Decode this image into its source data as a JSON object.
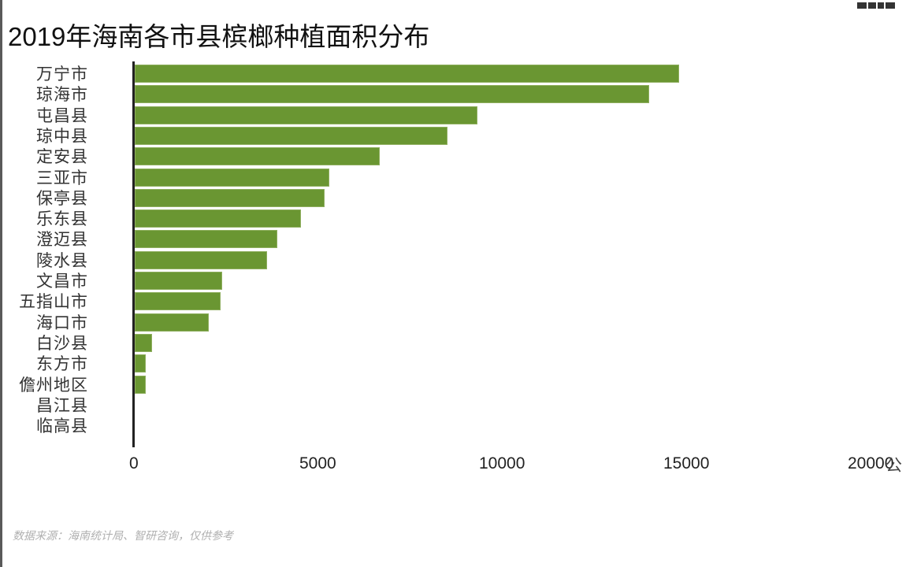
{
  "chart_data": {
    "type": "bar",
    "orientation": "horizontal",
    "title": "2019年海南各市县槟榔种植面积分布",
    "xlabel": "",
    "ylabel": "",
    "unit_label": "公",
    "xlim": [
      0,
      20000
    ],
    "xticks": [
      "0",
      "5000",
      "10000",
      "15000",
      "20000"
    ],
    "grid": false,
    "legend": null,
    "bar_color": "#6a9632",
    "categories": [
      "万宁市",
      "琼海市",
      "屯昌县",
      "琼中县",
      "定安县",
      "三亚市",
      "保亭县",
      "乐东县",
      "澄迈县",
      "陵水县",
      "文昌市",
      "五指山市",
      "海口市",
      "白沙县",
      "东方市",
      "儋州地区",
      "昌江县",
      "临高县"
    ],
    "values": [
      14770,
      13950,
      9290,
      8480,
      6650,
      5280,
      5150,
      4510,
      3870,
      3590,
      2370,
      2330,
      2010,
      470,
      300,
      300,
      0,
      0
    ],
    "source": "数据来源：海南统计局、智研咨询，仅供参考"
  }
}
